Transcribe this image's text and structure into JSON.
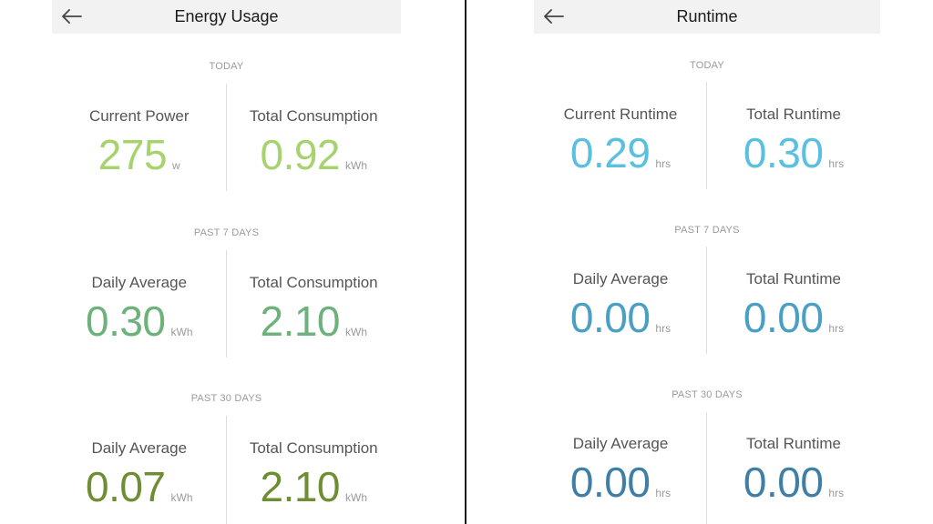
{
  "energy": {
    "title": "Energy Usage",
    "sections": [
      {
        "label": "TODAY",
        "metrics": [
          {
            "label": "Current Power",
            "value": "275",
            "unit": "w",
            "color": "#a7d36f"
          },
          {
            "label": "Total Consumption",
            "value": "0.92",
            "unit": "kWh",
            "color": "#a7d36f"
          }
        ]
      },
      {
        "label": "PAST 7 DAYS",
        "metrics": [
          {
            "label": "Daily Average",
            "value": "0.30",
            "unit": "kWh",
            "color": "#6cb27a"
          },
          {
            "label": "Total Consumption",
            "value": "2.10",
            "unit": "kWh",
            "color": "#6cb27a"
          }
        ]
      },
      {
        "label": "PAST 30 DAYS",
        "metrics": [
          {
            "label": "Daily Average",
            "value": "0.07",
            "unit": "kWh",
            "color": "#6f8d32"
          },
          {
            "label": "Total Consumption",
            "value": "2.10",
            "unit": "kWh",
            "color": "#6f8d32"
          }
        ]
      }
    ]
  },
  "runtime": {
    "title": "Runtime",
    "sections": [
      {
        "label": "TODAY",
        "metrics": [
          {
            "label": "Current Runtime",
            "value": "0.29",
            "unit": "hrs",
            "color": "#5ac0df"
          },
          {
            "label": "Total Runtime",
            "value": "0.30",
            "unit": "hrs",
            "color": "#5ac0df"
          }
        ]
      },
      {
        "label": "PAST 7 DAYS",
        "metrics": [
          {
            "label": "Daily Average",
            "value": "0.00",
            "unit": "hrs",
            "color": "#4a9fc4"
          },
          {
            "label": "Total Runtime",
            "value": "0.00",
            "unit": "hrs",
            "color": "#4a9fc4"
          }
        ]
      },
      {
        "label": "PAST 30 DAYS",
        "metrics": [
          {
            "label": "Daily Average",
            "value": "0.00",
            "unit": "hrs",
            "color": "#3f7fa6"
          },
          {
            "label": "Total Runtime",
            "value": "0.00",
            "unit": "hrs",
            "color": "#3f7fa6"
          }
        ]
      }
    ]
  }
}
